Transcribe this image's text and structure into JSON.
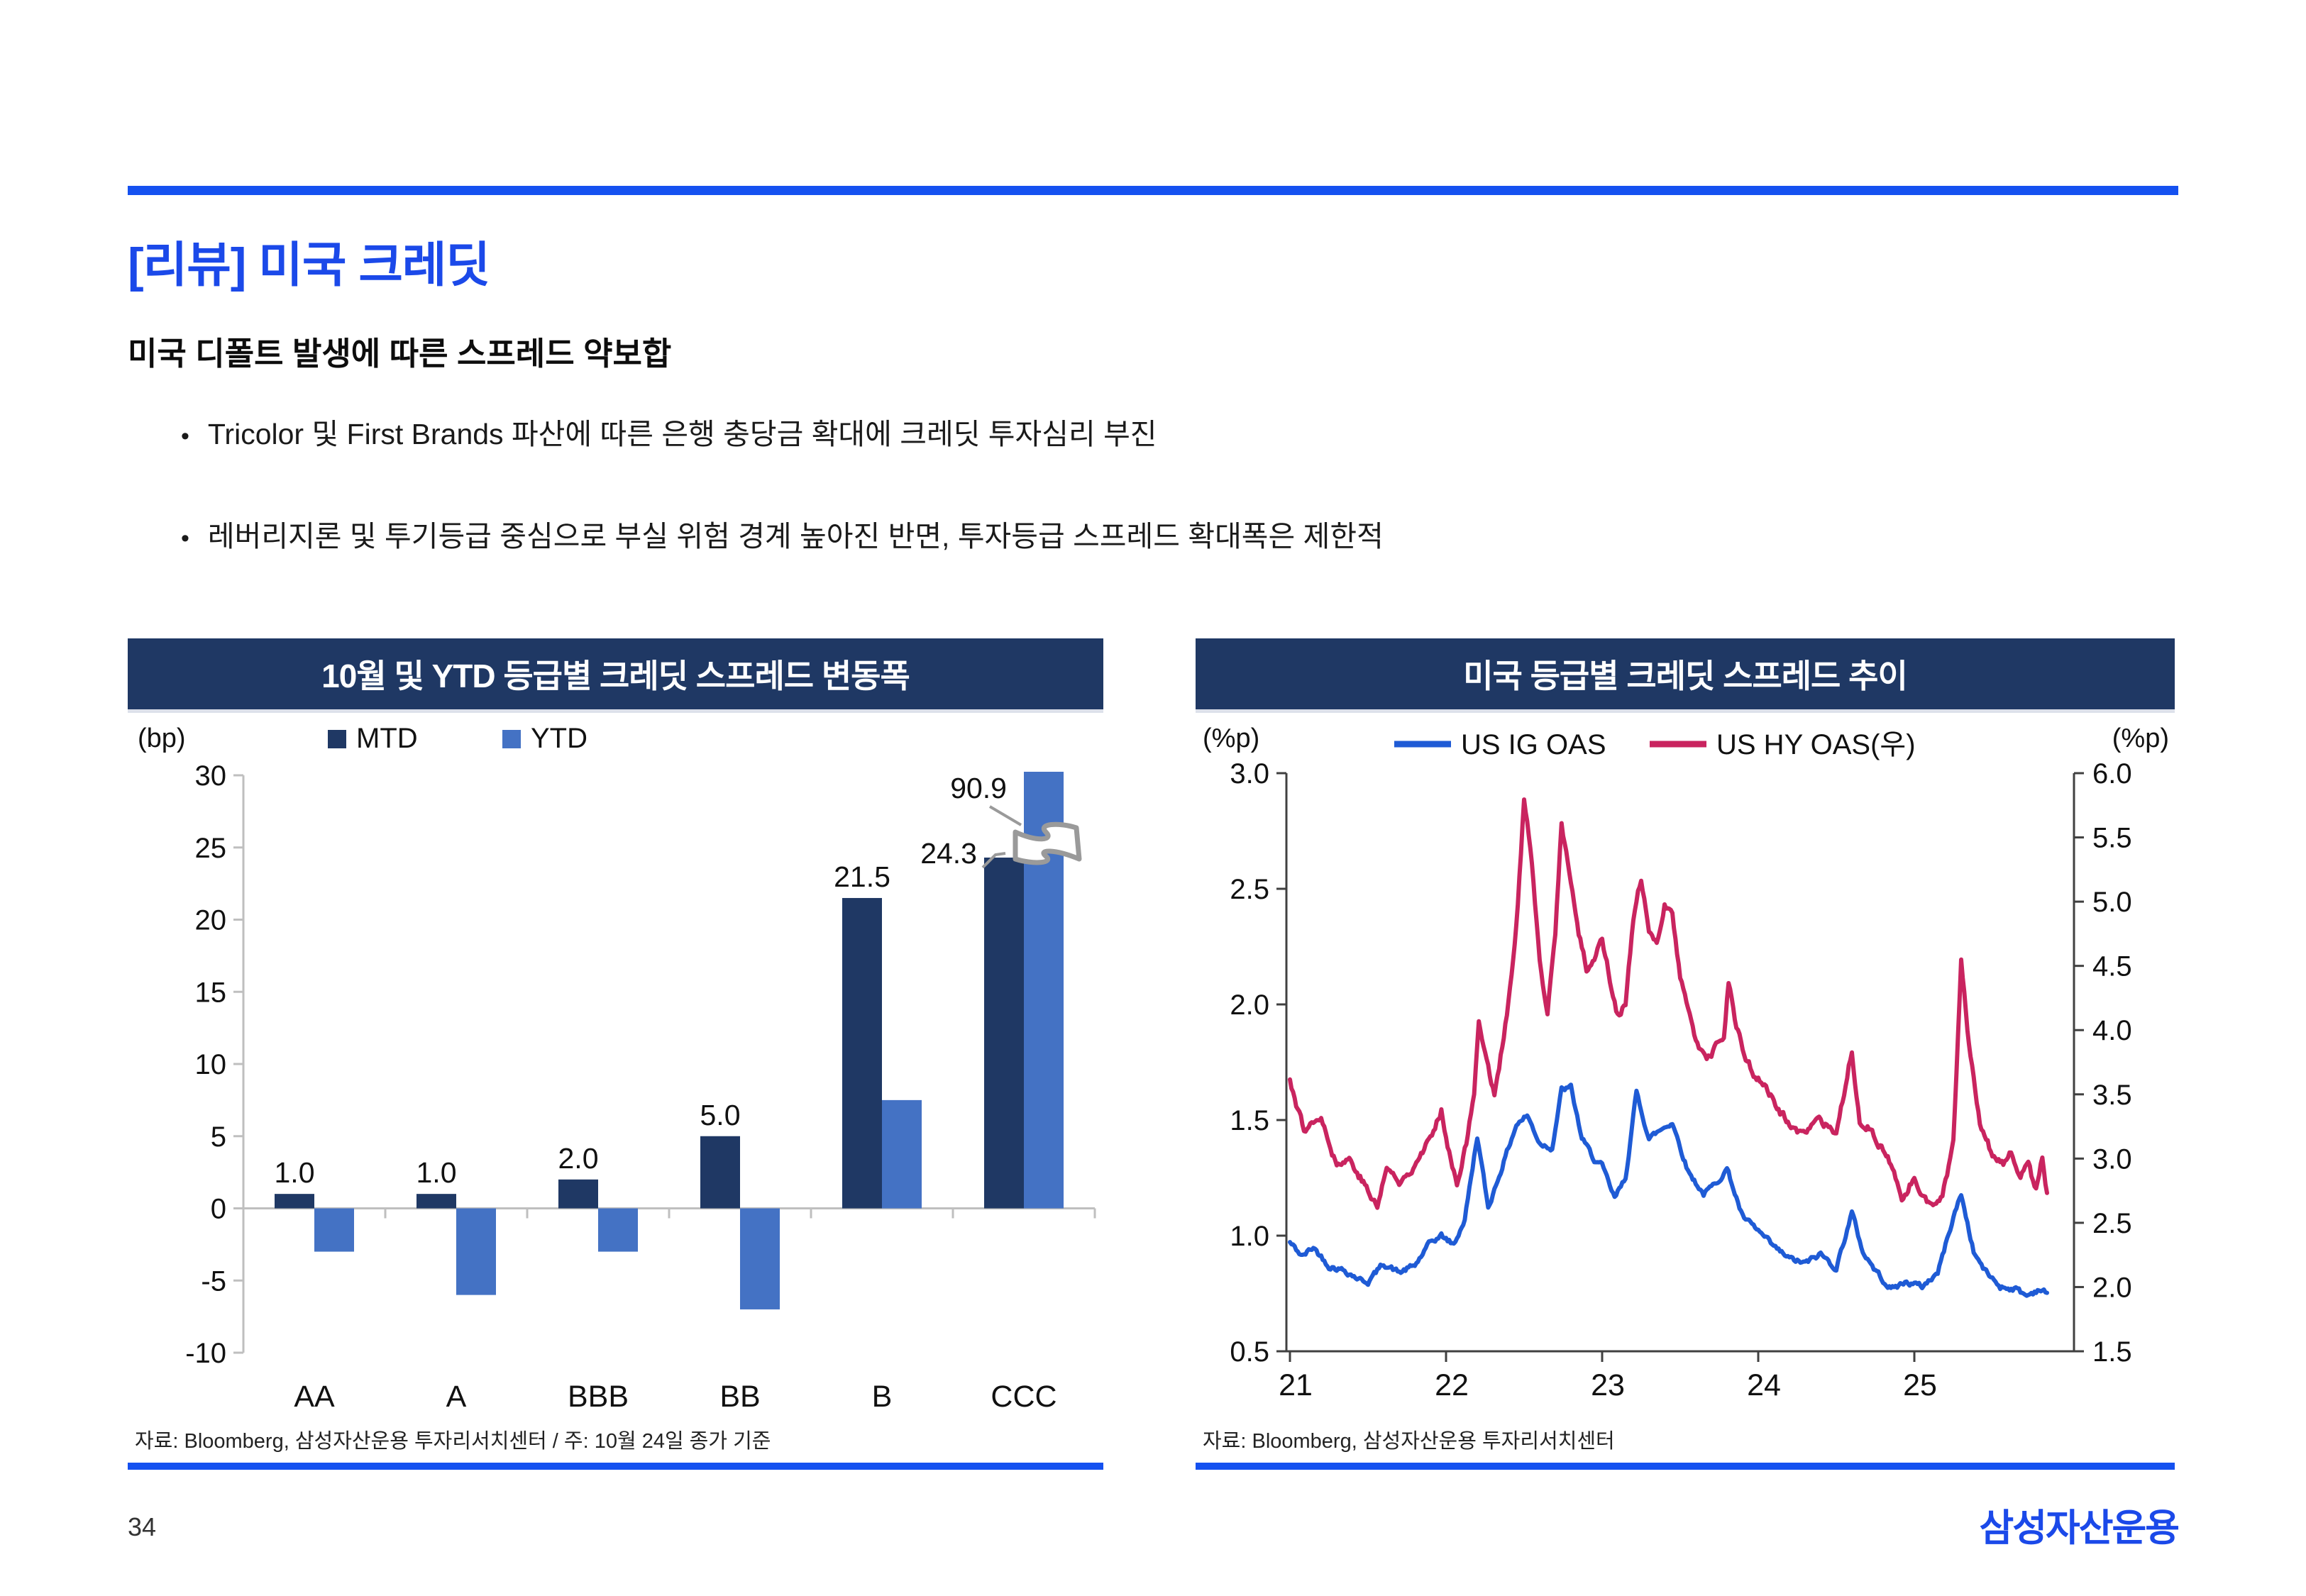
{
  "page": {
    "title": "[리뷰] 미국 크레딧",
    "subtitle": "미국 디폴트 발생에 따른 스프레드 약보합",
    "bullets": [
      "Tricolor 및 First Brands 파산에 따른 은행 충당금 확대에 크레딧 투자심리 부진",
      "레버리지론 및 투기등급 중심으로 부실 위험 경계 높아진 반면, 투자등급 스프레드 확대폭은 제한적"
    ],
    "page_number": "34",
    "logo_text": "삼성자산운용"
  },
  "colors": {
    "accent_blue": "#1551f0",
    "title_blue": "#1b49e9",
    "header_navy": "#1f3864",
    "mtd_navy": "#1f3864",
    "ytd_blue": "#4472c4",
    "ig_line_blue": "#1f5bd5",
    "hy_line_crimson": "#c9245f",
    "axis_gray": "#bfbfbf",
    "axis_dark": "#404040",
    "break_gray": "#9a9a9a"
  },
  "chart_data": [
    {
      "type": "bar",
      "title": "10월 및 YTD 등급별 크레딧 스프레드 변동폭",
      "unit": "(bp)",
      "categories": [
        "AA",
        "A",
        "BBB",
        "BB",
        "B",
        "CCC"
      ],
      "series": [
        {
          "name": "MTD",
          "color": "#1f3864",
          "values": [
            1.0,
            1.0,
            2.0,
            5.0,
            21.5,
            24.3
          ]
        },
        {
          "name": "YTD",
          "color": "#4472c4",
          "values": [
            -3.0,
            -6.0,
            -3.0,
            -7.0,
            7.5,
            90.9
          ]
        }
      ],
      "mtd_labels": [
        "1.0",
        "1.0",
        "2.0",
        "5.0",
        "21.5",
        "24.3"
      ],
      "ylim": [
        -10,
        30
      ],
      "yticks": [
        30,
        25,
        20,
        15,
        10,
        5,
        0,
        -5,
        -10
      ],
      "axis_break": {
        "series": "YTD",
        "category": "CCC",
        "label": "90.9"
      },
      "source": "자료: Bloomberg, 삼성자산운용 투자리서치센터 / 주: 10월 24일 종가 기준"
    },
    {
      "type": "line",
      "title": "미국 등급별 크레딧 스프레드 추이",
      "unit_left": "(%p)",
      "unit_right": "(%p)",
      "xlim": [
        21,
        25.9
      ],
      "xticks": [
        21,
        22,
        23,
        24,
        25
      ],
      "left_ylim": [
        0.5,
        3.0
      ],
      "left_yticks": [
        3.0,
        2.5,
        2.0,
        1.5,
        1.0,
        0.5
      ],
      "right_ylim": [
        1.5,
        6.0
      ],
      "right_yticks": [
        6.0,
        5.5,
        5.0,
        4.5,
        4.0,
        3.5,
        3.0,
        2.5,
        2.0,
        1.5
      ],
      "jitter": {
        "US_IG": 0.02,
        "US_HY": 0.055
      },
      "series": [
        {
          "name": "US IG OAS",
          "axis": "left",
          "color": "#1f5bd5",
          "points": [
            [
              21.0,
              0.97
            ],
            [
              21.08,
              0.91
            ],
            [
              21.15,
              0.95
            ],
            [
              21.25,
              0.87
            ],
            [
              21.35,
              0.85
            ],
            [
              21.45,
              0.81
            ],
            [
              21.5,
              0.8
            ],
            [
              21.6,
              0.88
            ],
            [
              21.7,
              0.84
            ],
            [
              21.8,
              0.87
            ],
            [
              21.9,
              0.97
            ],
            [
              21.97,
              1.0
            ],
            [
              22.05,
              0.96
            ],
            [
              22.12,
              1.07
            ],
            [
              22.2,
              1.43
            ],
            [
              22.27,
              1.12
            ],
            [
              22.35,
              1.28
            ],
            [
              22.45,
              1.48
            ],
            [
              22.52,
              1.52
            ],
            [
              22.6,
              1.4
            ],
            [
              22.68,
              1.38
            ],
            [
              22.74,
              1.63
            ],
            [
              22.8,
              1.64
            ],
            [
              22.87,
              1.42
            ],
            [
              22.95,
              1.33
            ],
            [
              23.0,
              1.3
            ],
            [
              23.08,
              1.16
            ],
            [
              23.15,
              1.25
            ],
            [
              23.22,
              1.62
            ],
            [
              23.3,
              1.42
            ],
            [
              23.4,
              1.47
            ],
            [
              23.45,
              1.49
            ],
            [
              23.55,
              1.28
            ],
            [
              23.65,
              1.18
            ],
            [
              23.72,
              1.22
            ],
            [
              23.8,
              1.29
            ],
            [
              23.9,
              1.08
            ],
            [
              24.0,
              1.02
            ],
            [
              24.1,
              0.95
            ],
            [
              24.2,
              0.9
            ],
            [
              24.3,
              0.88
            ],
            [
              24.4,
              0.92
            ],
            [
              24.5,
              0.86
            ],
            [
              24.6,
              1.1
            ],
            [
              24.67,
              0.93
            ],
            [
              24.75,
              0.85
            ],
            [
              24.85,
              0.77
            ],
            [
              24.95,
              0.8
            ],
            [
              25.05,
              0.78
            ],
            [
              25.15,
              0.84
            ],
            [
              25.25,
              1.08
            ],
            [
              25.3,
              1.18
            ],
            [
              25.38,
              0.93
            ],
            [
              25.45,
              0.85
            ],
            [
              25.55,
              0.78
            ],
            [
              25.65,
              0.77
            ],
            [
              25.72,
              0.74
            ],
            [
              25.8,
              0.77
            ],
            [
              25.85,
              0.75
            ]
          ]
        },
        {
          "name": "US HY OAS(우)",
          "axis": "right",
          "color": "#c9245f",
          "points": [
            [
              21.0,
              3.62
            ],
            [
              21.05,
              3.38
            ],
            [
              21.1,
              3.2
            ],
            [
              21.17,
              3.34
            ],
            [
              21.22,
              3.27
            ],
            [
              21.3,
              2.95
            ],
            [
              21.38,
              3.0
            ],
            [
              21.45,
              2.86
            ],
            [
              21.52,
              2.7
            ],
            [
              21.56,
              2.62
            ],
            [
              21.62,
              2.94
            ],
            [
              21.7,
              2.8
            ],
            [
              21.78,
              2.93
            ],
            [
              21.85,
              3.07
            ],
            [
              21.93,
              3.22
            ],
            [
              21.97,
              3.38
            ],
            [
              22.03,
              3.0
            ],
            [
              22.07,
              2.82
            ],
            [
              22.13,
              3.12
            ],
            [
              22.18,
              3.48
            ],
            [
              22.21,
              4.1
            ],
            [
              22.26,
              3.76
            ],
            [
              22.31,
              3.5
            ],
            [
              22.37,
              3.95
            ],
            [
              22.42,
              4.4
            ],
            [
              22.46,
              4.95
            ],
            [
              22.5,
              5.82
            ],
            [
              22.55,
              5.3
            ],
            [
              22.6,
              4.5
            ],
            [
              22.65,
              4.12
            ],
            [
              22.7,
              4.75
            ],
            [
              22.74,
              5.62
            ],
            [
              22.78,
              5.3
            ],
            [
              22.85,
              4.75
            ],
            [
              22.9,
              4.48
            ],
            [
              22.95,
              4.56
            ],
            [
              23.0,
              4.72
            ],
            [
              23.05,
              4.4
            ],
            [
              23.1,
              4.12
            ],
            [
              23.15,
              4.2
            ],
            [
              23.2,
              4.85
            ],
            [
              23.25,
              5.18
            ],
            [
              23.3,
              4.75
            ],
            [
              23.35,
              4.65
            ],
            [
              23.4,
              5.0
            ],
            [
              23.45,
              4.9
            ],
            [
              23.5,
              4.4
            ],
            [
              23.55,
              4.2
            ],
            [
              23.6,
              3.93
            ],
            [
              23.67,
              3.75
            ],
            [
              23.72,
              3.84
            ],
            [
              23.78,
              3.95
            ],
            [
              23.81,
              4.38
            ],
            [
              23.85,
              4.1
            ],
            [
              23.9,
              3.84
            ],
            [
              23.97,
              3.66
            ],
            [
              24.05,
              3.55
            ],
            [
              24.12,
              3.4
            ],
            [
              24.2,
              3.26
            ],
            [
              24.3,
              3.18
            ],
            [
              24.4,
              3.3
            ],
            [
              24.5,
              3.16
            ],
            [
              24.6,
              3.84
            ],
            [
              24.65,
              3.3
            ],
            [
              24.72,
              3.24
            ],
            [
              24.8,
              3.05
            ],
            [
              24.87,
              2.9
            ],
            [
              24.92,
              2.67
            ],
            [
              25.0,
              2.85
            ],
            [
              25.07,
              2.7
            ],
            [
              25.12,
              2.62
            ],
            [
              25.18,
              2.7
            ],
            [
              25.25,
              3.1
            ],
            [
              25.3,
              4.52
            ],
            [
              25.35,
              3.9
            ],
            [
              25.42,
              3.3
            ],
            [
              25.5,
              3.03
            ],
            [
              25.57,
              2.94
            ],
            [
              25.62,
              3.03
            ],
            [
              25.68,
              2.85
            ],
            [
              25.73,
              2.94
            ],
            [
              25.78,
              2.76
            ],
            [
              25.82,
              3.0
            ],
            [
              25.85,
              2.72
            ]
          ]
        }
      ],
      "source": "자료: Bloomberg, 삼성자산운용 투자리서치센터"
    }
  ]
}
